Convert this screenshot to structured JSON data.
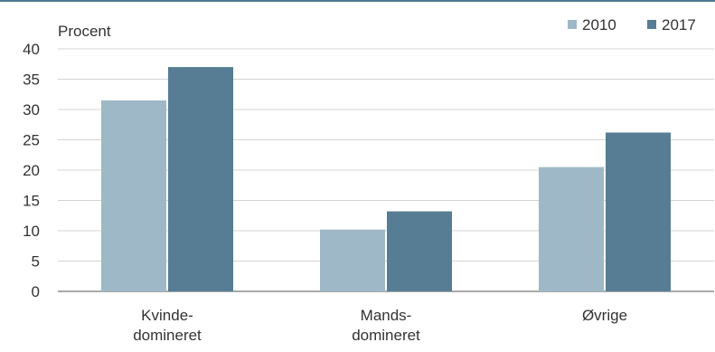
{
  "chart_data": {
    "type": "bar",
    "ylabel": "Procent",
    "ylim": [
      0,
      40
    ],
    "yticks": [
      0,
      5,
      10,
      15,
      20,
      25,
      30,
      35,
      40
    ],
    "grid": true,
    "legend_position": "top-right",
    "categories": [
      [
        "Kvinde-",
        "domineret"
      ],
      [
        "Mands-",
        "domineret"
      ],
      [
        "Øvrige"
      ]
    ],
    "series": [
      {
        "name": "2010",
        "color": "#9fb8c7",
        "values": [
          31.5,
          10.2,
          20.5
        ]
      },
      {
        "name": "2017",
        "color": "#567d93",
        "values": [
          37.0,
          13.2,
          26.2
        ]
      }
    ]
  }
}
